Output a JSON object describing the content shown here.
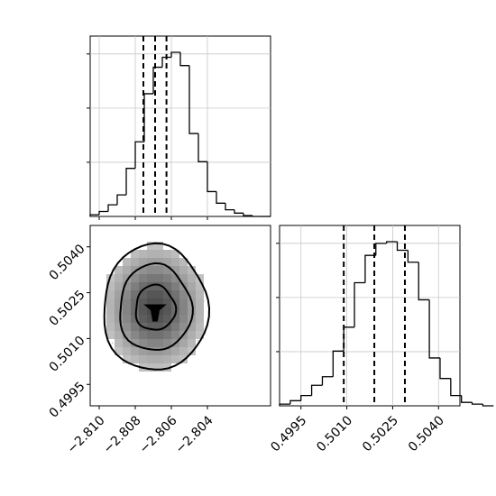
{
  "chart_data": [
    {
      "panel": "top-histogram",
      "type": "bar",
      "parameter_index": 0,
      "x_bin_edges": [
        -2.8105,
        -2.81,
        -2.8095,
        -2.809,
        -2.8085,
        -2.808,
        -2.8075,
        -2.807,
        -2.8065,
        -2.806,
        -2.8055,
        -2.805,
        -2.8045,
        -2.804,
        -2.8035,
        -2.803,
        -2.8025,
        -2.802,
        -2.8015,
        -2.801,
        -2.8005
      ],
      "counts_rel": [
        0.01,
        0.03,
        0.07,
        0.13,
        0.29,
        0.45,
        0.74,
        0.9,
        0.96,
        0.99,
        0.91,
        0.5,
        0.33,
        0.15,
        0.08,
        0.04,
        0.02,
        0.005,
        0.0,
        0.0
      ],
      "quantile_lines": [
        -2.80755,
        -2.8069,
        -2.80627
      ],
      "xlim": [
        -2.8105,
        -2.8005
      ],
      "grid": true,
      "histtype": "step"
    },
    {
      "panel": "2d-density",
      "type": "heatmap",
      "xlim": [
        -2.8105,
        -2.8005
      ],
      "ylim": [
        0.4988,
        0.5047
      ],
      "center": [
        -2.8069,
        0.502
      ],
      "contour_levels": [
        "39%",
        "86%",
        "99%"
      ],
      "xticks": [
        "−2.810",
        "−2.808",
        "−2.806",
        "−2.804"
      ],
      "yticks": [
        "0.4995",
        "0.5010",
        "0.5025",
        "0.5040"
      ]
    },
    {
      "panel": "right-histogram",
      "type": "bar",
      "parameter_index": 1,
      "x_bin_edges": [
        0.4988,
        0.49915,
        0.4995,
        0.49985,
        0.5002,
        0.50055,
        0.5009,
        0.50125,
        0.5016,
        0.50195,
        0.5023,
        0.50265,
        0.503,
        0.50335,
        0.5037,
        0.50405,
        0.5044,
        0.50475,
        0.5051,
        0.50545,
        0.5058
      ],
      "counts_rel": [
        0.01,
        0.03,
        0.06,
        0.12,
        0.17,
        0.32,
        0.46,
        0.72,
        0.88,
        0.95,
        0.96,
        0.91,
        0.84,
        0.62,
        0.28,
        0.16,
        0.06,
        0.02,
        0.01,
        0.0
      ],
      "quantile_lines": [
        0.5009,
        0.5019,
        0.5029
      ],
      "xlim": [
        0.4988,
        0.5047
      ],
      "xticks": [
        "0.4995",
        "0.5010",
        "0.5025",
        "0.5040"
      ],
      "grid": true,
      "histtype": "step"
    }
  ]
}
